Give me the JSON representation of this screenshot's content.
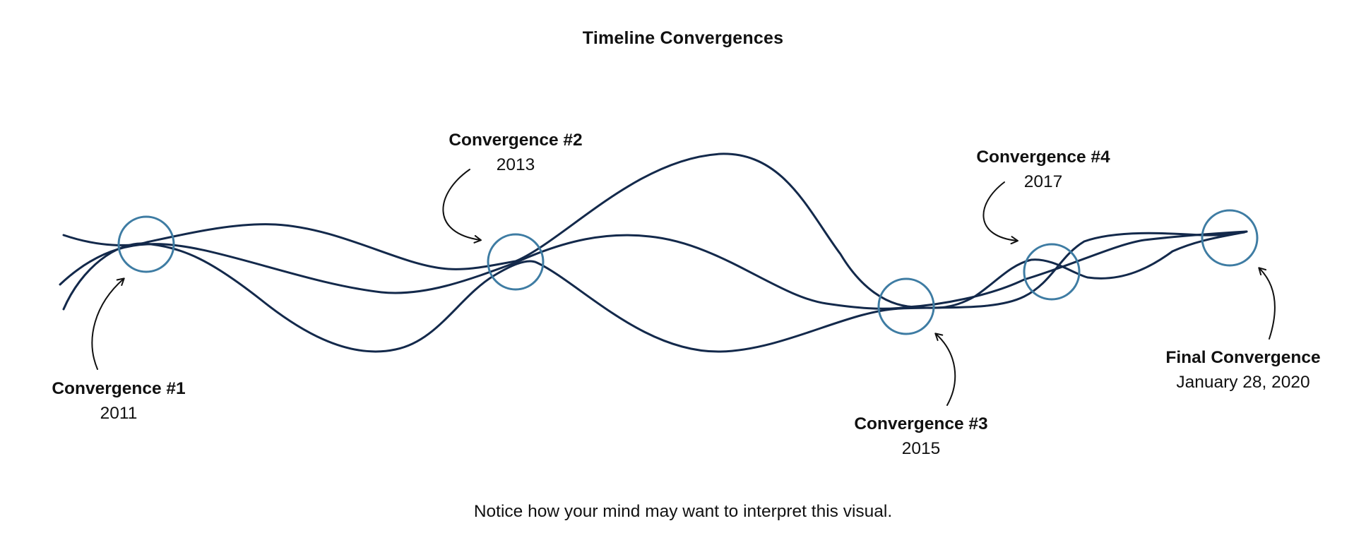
{
  "title": "Timeline Convergences",
  "convergences": [
    {
      "name": "Convergence #1",
      "date": "2011"
    },
    {
      "name": "Convergence #2",
      "date": "2013"
    },
    {
      "name": "Convergence #3",
      "date": "2015"
    },
    {
      "name": "Convergence #4",
      "date": "2017"
    },
    {
      "name": "Final Convergence",
      "date": "January 28, 2020"
    }
  ],
  "footnote": "Notice how your mind may want to interpret this visual.",
  "colors": {
    "timeline_stroke": "#13294b",
    "circle_stroke": "#3e7ca3",
    "arrow_stroke": "#111111",
    "text": "#111111"
  }
}
